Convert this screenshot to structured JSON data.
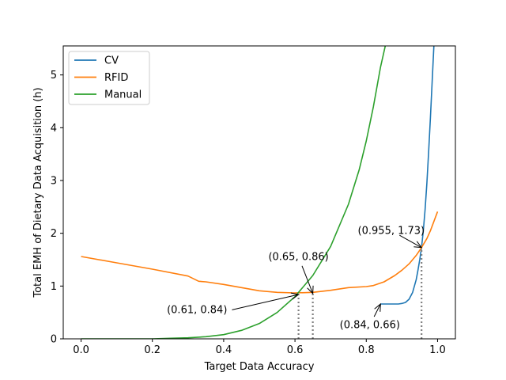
{
  "chart_data": {
    "type": "line",
    "title": "",
    "xlabel": "Target Data Accuracy",
    "ylabel": "Total EMH of Dietary Data Acquisition (h)",
    "xlim": [
      -0.05,
      1.05
    ],
    "ylim": [
      0,
      5.55
    ],
    "xticks": [
      0.0,
      0.2,
      0.4,
      0.6,
      0.8,
      1.0
    ],
    "xtick_labels": [
      "0.0",
      "0.2",
      "0.4",
      "0.6",
      "0.8",
      "1.0"
    ],
    "yticks": [
      0,
      1,
      2,
      3,
      4,
      5
    ],
    "ytick_labels": [
      "0",
      "1",
      "2",
      "3",
      "4",
      "5"
    ],
    "grid": false,
    "legend_position": "top-left",
    "series": [
      {
        "name": "CV",
        "color": "#1f77b4",
        "x": [
          0.84,
          0.87,
          0.89,
          0.9,
          0.91,
          0.92,
          0.93,
          0.94,
          0.945,
          0.95,
          0.955,
          0.96,
          0.965,
          0.97,
          0.975,
          0.98,
          0.985,
          0.99,
          0.995
        ],
        "y": [
          0.66,
          0.66,
          0.66,
          0.67,
          0.69,
          0.75,
          0.88,
          1.12,
          1.3,
          1.5,
          1.73,
          2.05,
          2.45,
          2.95,
          3.55,
          4.2,
          4.9,
          5.6,
          6.3
        ]
      },
      {
        "name": "RFID",
        "color": "#ff7f0e",
        "x": [
          0.0,
          0.1,
          0.2,
          0.3,
          0.33,
          0.35,
          0.4,
          0.45,
          0.5,
          0.55,
          0.6,
          0.65,
          0.7,
          0.75,
          0.8,
          0.82,
          0.85,
          0.88,
          0.9,
          0.92,
          0.94,
          0.955,
          0.97,
          0.98,
          1.0
        ],
        "y": [
          1.56,
          1.44,
          1.32,
          1.19,
          1.09,
          1.08,
          1.03,
          0.97,
          0.91,
          0.88,
          0.87,
          0.88,
          0.92,
          0.97,
          0.99,
          1.01,
          1.08,
          1.2,
          1.3,
          1.42,
          1.58,
          1.73,
          1.9,
          2.05,
          2.41
        ]
      },
      {
        "name": "Manual",
        "color": "#2ca02c",
        "x": [
          0.0,
          0.1,
          0.2,
          0.25,
          0.3,
          0.35,
          0.4,
          0.45,
          0.5,
          0.55,
          0.6,
          0.65,
          0.7,
          0.75,
          0.78,
          0.8,
          0.82,
          0.84,
          0.855
        ],
        "y": [
          0.0,
          0.0,
          0.0,
          0.01,
          0.02,
          0.04,
          0.08,
          0.16,
          0.29,
          0.5,
          0.8,
          1.2,
          1.75,
          2.55,
          3.2,
          3.75,
          4.4,
          5.15,
          5.6
        ]
      }
    ],
    "vlines": [
      {
        "x": 0.61,
        "y": 0.84
      },
      {
        "x": 0.65,
        "y": 0.86
      },
      {
        "x": 0.955,
        "y": 1.73
      }
    ],
    "annotations": [
      {
        "text": "(0.61, 0.84)",
        "point": [
          0.61,
          0.84
        ],
        "text_xy": [
          0.41,
          0.55
        ],
        "anchor": "end"
      },
      {
        "text": "(0.65, 0.86)",
        "point": [
          0.65,
          0.86
        ],
        "text_xy": [
          0.61,
          1.55
        ],
        "anchor": "middle"
      },
      {
        "text": "(0.955, 1.73)",
        "point": [
          0.955,
          1.73
        ],
        "text_xy": [
          0.87,
          2.05
        ],
        "anchor": "middle"
      },
      {
        "text": "(0.84, 0.66)",
        "point": [
          0.84,
          0.66
        ],
        "text_xy": [
          0.81,
          0.26
        ],
        "anchor": "middle"
      }
    ]
  }
}
